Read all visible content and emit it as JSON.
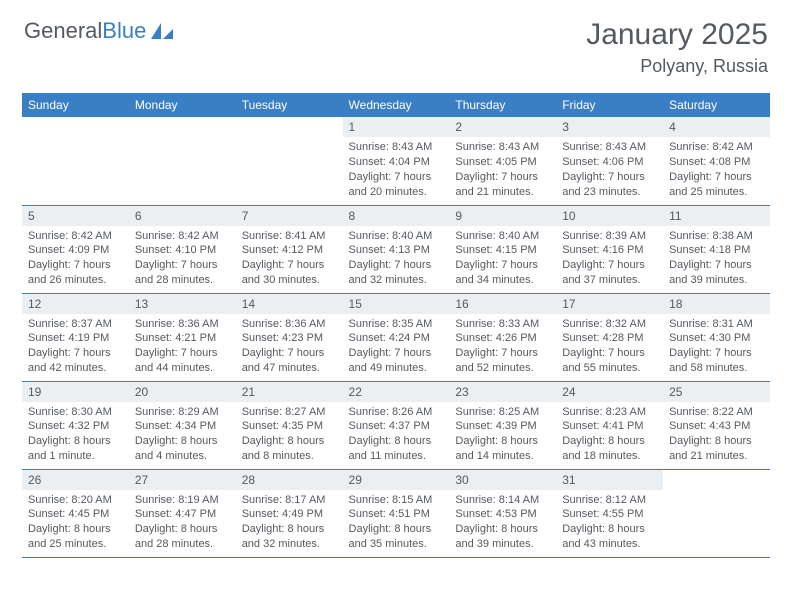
{
  "brand": {
    "part1": "General",
    "part2": "Blue"
  },
  "title": "January 2025",
  "location": "Polyany, Russia",
  "colors": {
    "accent": "#3a7fc4",
    "text": "#555a60",
    "daynum_bg": "#eceff1",
    "background": "#ffffff"
  },
  "calendar": {
    "type": "table",
    "columns": [
      "Sunday",
      "Monday",
      "Tuesday",
      "Wednesday",
      "Thursday",
      "Friday",
      "Saturday"
    ],
    "weeks": [
      [
        null,
        null,
        null,
        {
          "n": "1",
          "sr": "8:43 AM",
          "ss": "4:04 PM",
          "dl": "7 hours and 20 minutes."
        },
        {
          "n": "2",
          "sr": "8:43 AM",
          "ss": "4:05 PM",
          "dl": "7 hours and 21 minutes."
        },
        {
          "n": "3",
          "sr": "8:43 AM",
          "ss": "4:06 PM",
          "dl": "7 hours and 23 minutes."
        },
        {
          "n": "4",
          "sr": "8:42 AM",
          "ss": "4:08 PM",
          "dl": "7 hours and 25 minutes."
        }
      ],
      [
        {
          "n": "5",
          "sr": "8:42 AM",
          "ss": "4:09 PM",
          "dl": "7 hours and 26 minutes."
        },
        {
          "n": "6",
          "sr": "8:42 AM",
          "ss": "4:10 PM",
          "dl": "7 hours and 28 minutes."
        },
        {
          "n": "7",
          "sr": "8:41 AM",
          "ss": "4:12 PM",
          "dl": "7 hours and 30 minutes."
        },
        {
          "n": "8",
          "sr": "8:40 AM",
          "ss": "4:13 PM",
          "dl": "7 hours and 32 minutes."
        },
        {
          "n": "9",
          "sr": "8:40 AM",
          "ss": "4:15 PM",
          "dl": "7 hours and 34 minutes."
        },
        {
          "n": "10",
          "sr": "8:39 AM",
          "ss": "4:16 PM",
          "dl": "7 hours and 37 minutes."
        },
        {
          "n": "11",
          "sr": "8:38 AM",
          "ss": "4:18 PM",
          "dl": "7 hours and 39 minutes."
        }
      ],
      [
        {
          "n": "12",
          "sr": "8:37 AM",
          "ss": "4:19 PM",
          "dl": "7 hours and 42 minutes."
        },
        {
          "n": "13",
          "sr": "8:36 AM",
          "ss": "4:21 PM",
          "dl": "7 hours and 44 minutes."
        },
        {
          "n": "14",
          "sr": "8:36 AM",
          "ss": "4:23 PM",
          "dl": "7 hours and 47 minutes."
        },
        {
          "n": "15",
          "sr": "8:35 AM",
          "ss": "4:24 PM",
          "dl": "7 hours and 49 minutes."
        },
        {
          "n": "16",
          "sr": "8:33 AM",
          "ss": "4:26 PM",
          "dl": "7 hours and 52 minutes."
        },
        {
          "n": "17",
          "sr": "8:32 AM",
          "ss": "4:28 PM",
          "dl": "7 hours and 55 minutes."
        },
        {
          "n": "18",
          "sr": "8:31 AM",
          "ss": "4:30 PM",
          "dl": "7 hours and 58 minutes."
        }
      ],
      [
        {
          "n": "19",
          "sr": "8:30 AM",
          "ss": "4:32 PM",
          "dl": "8 hours and 1 minute."
        },
        {
          "n": "20",
          "sr": "8:29 AM",
          "ss": "4:34 PM",
          "dl": "8 hours and 4 minutes."
        },
        {
          "n": "21",
          "sr": "8:27 AM",
          "ss": "4:35 PM",
          "dl": "8 hours and 8 minutes."
        },
        {
          "n": "22",
          "sr": "8:26 AM",
          "ss": "4:37 PM",
          "dl": "8 hours and 11 minutes."
        },
        {
          "n": "23",
          "sr": "8:25 AM",
          "ss": "4:39 PM",
          "dl": "8 hours and 14 minutes."
        },
        {
          "n": "24",
          "sr": "8:23 AM",
          "ss": "4:41 PM",
          "dl": "8 hours and 18 minutes."
        },
        {
          "n": "25",
          "sr": "8:22 AM",
          "ss": "4:43 PM",
          "dl": "8 hours and 21 minutes."
        }
      ],
      [
        {
          "n": "26",
          "sr": "8:20 AM",
          "ss": "4:45 PM",
          "dl": "8 hours and 25 minutes."
        },
        {
          "n": "27",
          "sr": "8:19 AM",
          "ss": "4:47 PM",
          "dl": "8 hours and 28 minutes."
        },
        {
          "n": "28",
          "sr": "8:17 AM",
          "ss": "4:49 PM",
          "dl": "8 hours and 32 minutes."
        },
        {
          "n": "29",
          "sr": "8:15 AM",
          "ss": "4:51 PM",
          "dl": "8 hours and 35 minutes."
        },
        {
          "n": "30",
          "sr": "8:14 AM",
          "ss": "4:53 PM",
          "dl": "8 hours and 39 minutes."
        },
        {
          "n": "31",
          "sr": "8:12 AM",
          "ss": "4:55 PM",
          "dl": "8 hours and 43 minutes."
        },
        null
      ]
    ],
    "labels": {
      "sunrise": "Sunrise: ",
      "sunset": "Sunset: ",
      "daylight": "Daylight: "
    }
  }
}
